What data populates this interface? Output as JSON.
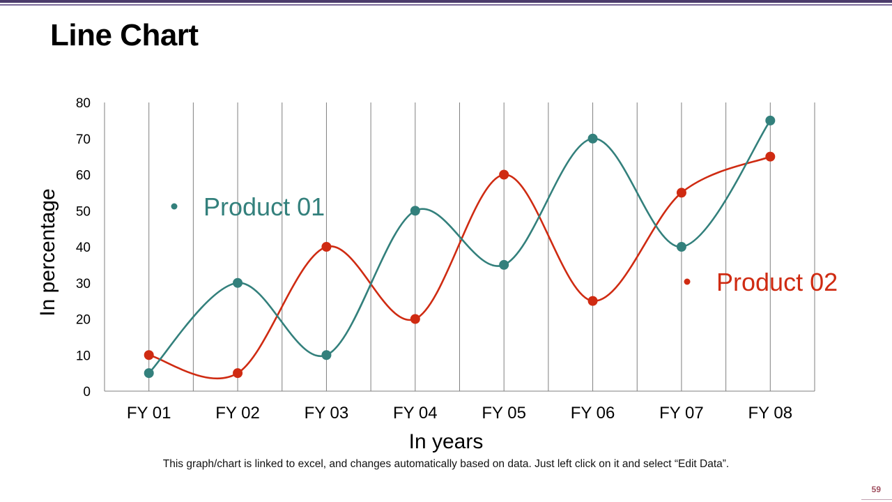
{
  "slide": {
    "title": "Line Chart",
    "footnote": "This graph/chart is linked to excel, and changes automatically based on data. Just left click on it and select “Edit Data”.",
    "page_number": "59"
  },
  "colors": {
    "product01": "#33807c",
    "product02": "#cf2b12",
    "grid": "#7f7f7f",
    "header_bar": "#4b3b6b"
  },
  "chart_data": {
    "type": "line",
    "title": "",
    "xlabel": "In years",
    "ylabel": "In percentage",
    "categories": [
      "FY 01",
      "FY 02",
      "FY 03",
      "FY 04",
      "FY 05",
      "FY 06",
      "FY 07",
      "FY 08"
    ],
    "ylim": [
      0,
      80
    ],
    "yticks": [
      0,
      10,
      20,
      30,
      40,
      50,
      60,
      70,
      80
    ],
    "grid": "vertical",
    "smooth": true,
    "series": [
      {
        "name": "Product 01",
        "color": "#33807c",
        "values": [
          5,
          30,
          10,
          50,
          35,
          70,
          40,
          75
        ]
      },
      {
        "name": "Product 02",
        "color": "#cf2b12",
        "values": [
          10,
          5,
          40,
          20,
          60,
          25,
          55,
          65
        ]
      }
    ]
  }
}
